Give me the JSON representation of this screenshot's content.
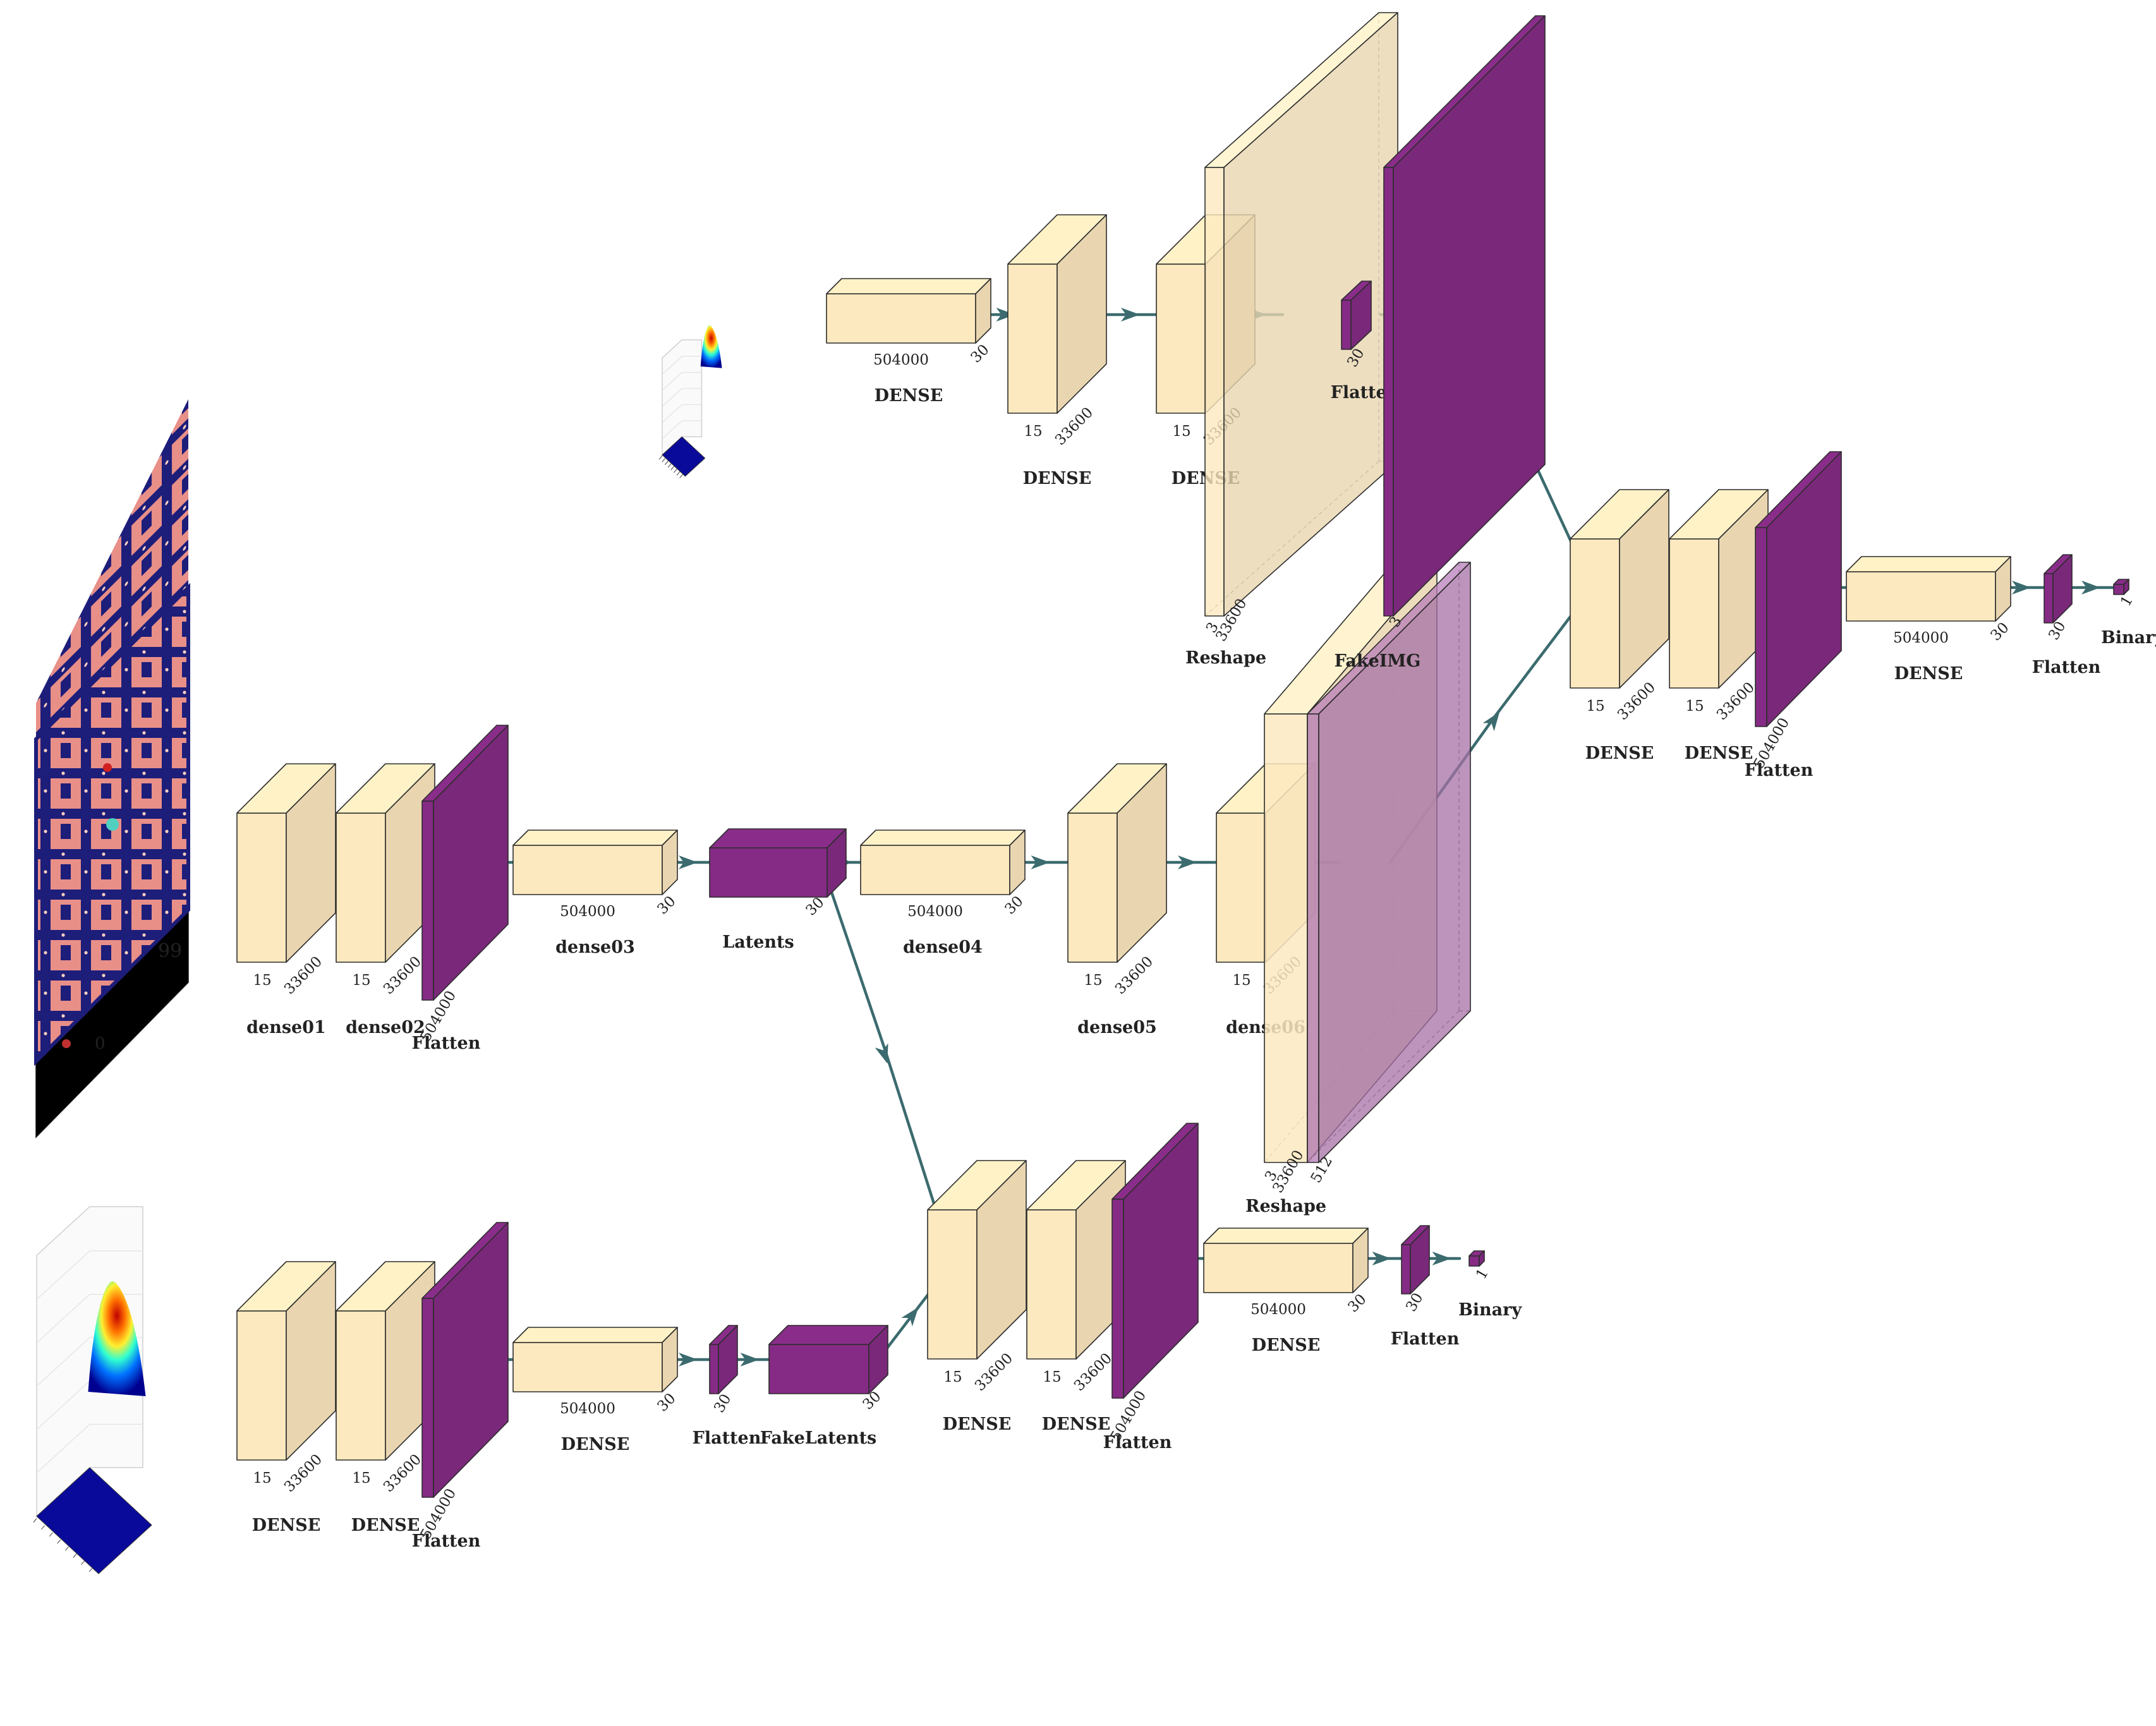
{
  "colors": {
    "dense_face": "#fde9bf",
    "dense_stroke": "#2d2d2d",
    "flatten_face": "#852b85",
    "flatten_light": "#b37ab3",
    "arrow": "#3b6b6e"
  },
  "images": {
    "game_frame": "ms-pacman-frame",
    "noise_surface_top": "gaussian-surface-plot",
    "noise_surface_bottom": "gaussian-surface-plot"
  },
  "layers": {
    "ae_dense01": {
      "label": "dense01",
      "d1": "15",
      "d2": "33600"
    },
    "ae_dense02": {
      "label": "dense02",
      "d1": "15",
      "d2": "33600"
    },
    "ae_flatten": {
      "label": "Flatten",
      "d1": "504000"
    },
    "ae_dense03": {
      "label": "dense03",
      "d1": "504000",
      "d2": "30"
    },
    "ae_latents": {
      "label": "Latents",
      "d1": "30"
    },
    "ae_dense04": {
      "label": "dense04",
      "d1": "504000",
      "d2": "30"
    },
    "ae_dense05": {
      "label": "dense05",
      "d1": "15",
      "d2": "33600"
    },
    "ae_dense06": {
      "label": "dense06",
      "d1": "15",
      "d2": "33600"
    },
    "ae_reshape": {
      "label": "Reshape",
      "d1": "3",
      "d2": "33600",
      "d3": "512"
    },
    "gen_dense1": {
      "label": "DENSE",
      "d1": "504000",
      "d2": "30"
    },
    "gen_dense2": {
      "label": "DENSE",
      "d1": "15",
      "d2": "33600"
    },
    "gen_dense3": {
      "label": "DENSE",
      "d1": "15",
      "d2": "33600"
    },
    "gen_reshape": {
      "label": "Reshape",
      "d1": "3",
      "d2": "33600"
    },
    "gen_flatten": {
      "label": "Flatten",
      "d1": "30"
    },
    "gen_fakeimg": {
      "label": "FakeIMG",
      "d1": "3"
    },
    "disc_dense1": {
      "label": "DENSE",
      "d1": "15",
      "d2": "33600"
    },
    "disc_dense2": {
      "label": "DENSE",
      "d1": "15",
      "d2": "33600"
    },
    "disc_flatten1": {
      "label": "Flatten",
      "d1": "504000"
    },
    "disc_dense3": {
      "label": "DENSE",
      "d1": "504000",
      "d2": "30"
    },
    "disc_flatten2": {
      "label": "Flatten",
      "d1": "30"
    },
    "disc_binary": {
      "label": "Binary",
      "d1": "1"
    },
    "lg_dense1": {
      "label": "DENSE",
      "d1": "15",
      "d2": "33600"
    },
    "lg_dense2": {
      "label": "DENSE",
      "d1": "15",
      "d2": "33600"
    },
    "lg_flatten": {
      "label": "Flatten",
      "d1": "504000"
    },
    "lg_dense3": {
      "label": "DENSE",
      "d1": "504000",
      "d2": "30"
    },
    "lg_flatten2": {
      "label": "Flatten",
      "d1": "30"
    },
    "lg_fakelatents": {
      "label": "FakeLatents",
      "d1": "30"
    },
    "ld_dense1": {
      "label": "DENSE",
      "d1": "15",
      "d2": "33600"
    },
    "ld_dense2": {
      "label": "DENSE",
      "d1": "15",
      "d2": "33600"
    },
    "ld_flatten": {
      "label": "Flatten",
      "d1": "504000"
    },
    "ld_dense3": {
      "label": "DENSE",
      "d1": "504000",
      "d2": "30"
    },
    "ld_flatten2": {
      "label": "Flatten",
      "d1": "30"
    },
    "ld_binary": {
      "label": "Binary",
      "d1": "1"
    }
  }
}
